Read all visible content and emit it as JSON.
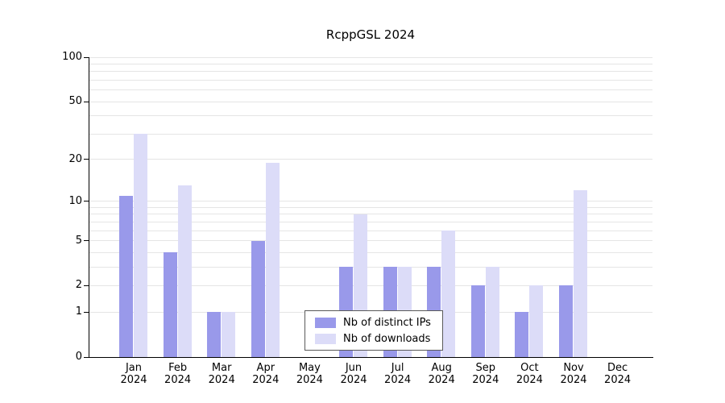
{
  "chart": {
    "title": "RcppGSL 2024",
    "colors": {
      "ips": "#9999ea",
      "downloads": "#dcdcf8",
      "grid": "#e5e5e5",
      "axis": "#000000",
      "legend_border": "#5a5a5a"
    },
    "legend": {
      "items": [
        {
          "label": "Nb of distinct IPs",
          "series": "ips"
        },
        {
          "label": "Nb of downloads",
          "series": "downloads"
        }
      ]
    },
    "y_ticks": [
      0,
      1,
      2,
      5,
      10,
      20,
      50,
      100
    ],
    "grid_values": [
      1,
      2,
      3,
      4,
      5,
      6,
      7,
      8,
      9,
      10,
      20,
      30,
      40,
      50,
      60,
      70,
      80,
      90,
      100
    ]
  },
  "chart_data": {
    "type": "bar",
    "title": "RcppGSL 2024",
    "xlabel": "",
    "ylabel": "",
    "scale": "log10(value+1)",
    "ylim": [
      0,
      100
    ],
    "grid": "horizontal",
    "legend_position": "inside-bottom-center",
    "categories": [
      {
        "month": "Jan",
        "year": "2024"
      },
      {
        "month": "Feb",
        "year": "2024"
      },
      {
        "month": "Mar",
        "year": "2024"
      },
      {
        "month": "Apr",
        "year": "2024"
      },
      {
        "month": "May",
        "year": "2024"
      },
      {
        "month": "Jun",
        "year": "2024"
      },
      {
        "month": "Jul",
        "year": "2024"
      },
      {
        "month": "Aug",
        "year": "2024"
      },
      {
        "month": "Sep",
        "year": "2024"
      },
      {
        "month": "Oct",
        "year": "2024"
      },
      {
        "month": "Nov",
        "year": "2024"
      },
      {
        "month": "Dec",
        "year": "2024"
      }
    ],
    "series": [
      {
        "name": "Nb of distinct IPs",
        "values": [
          11,
          4,
          1,
          5,
          0,
          3,
          3,
          3,
          2,
          1,
          2,
          0
        ]
      },
      {
        "name": "Nb of downloads",
        "values": [
          30,
          13,
          1,
          19,
          0,
          8,
          3,
          6,
          3,
          2,
          12,
          0
        ]
      }
    ]
  }
}
